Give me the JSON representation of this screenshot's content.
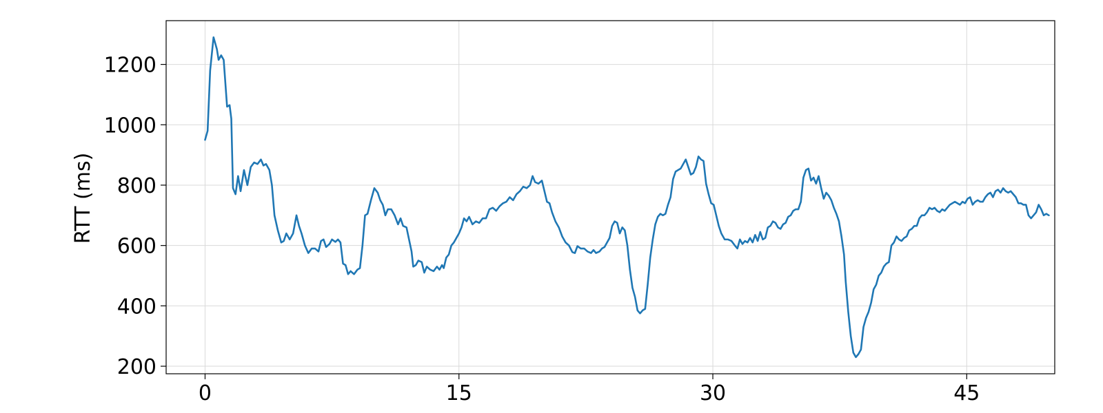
{
  "chart_data": {
    "type": "line",
    "title": "",
    "xlabel": "",
    "ylabel": "RTT (ms)",
    "xlim": [
      -2.3,
      50.2
    ],
    "ylim": [
      175,
      1345
    ],
    "x_ticks": [
      0,
      15,
      30,
      45
    ],
    "y_ticks": [
      200,
      400,
      600,
      800,
      1000,
      1200
    ],
    "grid": true,
    "legend": "none",
    "series": [
      {
        "color": "#1f77b4",
        "points": [
          [
            0,
            950
          ],
          [
            0.15,
            980
          ],
          [
            0.3,
            1180
          ],
          [
            0.5,
            1290
          ],
          [
            0.7,
            1250
          ],
          [
            0.8,
            1215
          ],
          [
            0.95,
            1230
          ],
          [
            1.1,
            1215
          ],
          [
            1.3,
            1060
          ],
          [
            1.45,
            1065
          ],
          [
            1.55,
            1020
          ],
          [
            1.65,
            790
          ],
          [
            1.8,
            770
          ],
          [
            1.95,
            830
          ],
          [
            2.1,
            780
          ],
          [
            2.3,
            850
          ],
          [
            2.5,
            800
          ],
          [
            2.7,
            860
          ],
          [
            2.9,
            875
          ],
          [
            3.1,
            870
          ],
          [
            3.3,
            885
          ],
          [
            3.45,
            865
          ],
          [
            3.6,
            870
          ],
          [
            3.8,
            850
          ],
          [
            3.95,
            800
          ],
          [
            4.1,
            700
          ],
          [
            4.3,
            650
          ],
          [
            4.5,
            610
          ],
          [
            4.65,
            615
          ],
          [
            4.8,
            640
          ],
          [
            5.0,
            620
          ],
          [
            5.2,
            640
          ],
          [
            5.4,
            700
          ],
          [
            5.55,
            665
          ],
          [
            5.7,
            640
          ],
          [
            5.9,
            600
          ],
          [
            6.1,
            575
          ],
          [
            6.3,
            590
          ],
          [
            6.5,
            590
          ],
          [
            6.7,
            580
          ],
          [
            6.85,
            615
          ],
          [
            7.0,
            620
          ],
          [
            7.15,
            595
          ],
          [
            7.35,
            605
          ],
          [
            7.5,
            620
          ],
          [
            7.7,
            612
          ],
          [
            7.85,
            620
          ],
          [
            8.0,
            610
          ],
          [
            8.15,
            540
          ],
          [
            8.3,
            535
          ],
          [
            8.45,
            505
          ],
          [
            8.6,
            515
          ],
          [
            8.8,
            505
          ],
          [
            9.0,
            520
          ],
          [
            9.15,
            525
          ],
          [
            9.3,
            600
          ],
          [
            9.45,
            700
          ],
          [
            9.6,
            705
          ],
          [
            9.8,
            750
          ],
          [
            10.0,
            790
          ],
          [
            10.2,
            775
          ],
          [
            10.35,
            750
          ],
          [
            10.5,
            735
          ],
          [
            10.65,
            700
          ],
          [
            10.8,
            720
          ],
          [
            11.0,
            720
          ],
          [
            11.2,
            700
          ],
          [
            11.4,
            670
          ],
          [
            11.55,
            690
          ],
          [
            11.7,
            665
          ],
          [
            11.9,
            660
          ],
          [
            12.05,
            620
          ],
          [
            12.2,
            580
          ],
          [
            12.3,
            530
          ],
          [
            12.45,
            535
          ],
          [
            12.6,
            550
          ],
          [
            12.8,
            545
          ],
          [
            12.95,
            510
          ],
          [
            13.1,
            530
          ],
          [
            13.3,
            520
          ],
          [
            13.5,
            515
          ],
          [
            13.7,
            530
          ],
          [
            13.85,
            520
          ],
          [
            14.0,
            535
          ],
          [
            14.1,
            525
          ],
          [
            14.25,
            560
          ],
          [
            14.4,
            570
          ],
          [
            14.55,
            600
          ],
          [
            14.7,
            610
          ],
          [
            14.85,
            625
          ],
          [
            15.0,
            640
          ],
          [
            15.15,
            660
          ],
          [
            15.3,
            690
          ],
          [
            15.45,
            680
          ],
          [
            15.6,
            695
          ],
          [
            15.8,
            670
          ],
          [
            16.0,
            680
          ],
          [
            16.2,
            675
          ],
          [
            16.4,
            690
          ],
          [
            16.6,
            690
          ],
          [
            16.8,
            720
          ],
          [
            17.0,
            725
          ],
          [
            17.2,
            715
          ],
          [
            17.4,
            730
          ],
          [
            17.6,
            740
          ],
          [
            17.8,
            745
          ],
          [
            18.0,
            760
          ],
          [
            18.2,
            750
          ],
          [
            18.4,
            770
          ],
          [
            18.6,
            780
          ],
          [
            18.8,
            795
          ],
          [
            19.0,
            790
          ],
          [
            19.2,
            800
          ],
          [
            19.35,
            830
          ],
          [
            19.5,
            810
          ],
          [
            19.7,
            805
          ],
          [
            19.9,
            815
          ],
          [
            20.05,
            780
          ],
          [
            20.2,
            745
          ],
          [
            20.35,
            740
          ],
          [
            20.5,
            710
          ],
          [
            20.7,
            680
          ],
          [
            20.9,
            660
          ],
          [
            21.1,
            630
          ],
          [
            21.3,
            610
          ],
          [
            21.5,
            600
          ],
          [
            21.7,
            578
          ],
          [
            21.85,
            575
          ],
          [
            22.0,
            598
          ],
          [
            22.2,
            590
          ],
          [
            22.4,
            590
          ],
          [
            22.6,
            580
          ],
          [
            22.8,
            575
          ],
          [
            22.95,
            585
          ],
          [
            23.1,
            575
          ],
          [
            23.3,
            580
          ],
          [
            23.45,
            590
          ],
          [
            23.6,
            595
          ],
          [
            23.75,
            610
          ],
          [
            23.9,
            625
          ],
          [
            24.05,
            665
          ],
          [
            24.2,
            680
          ],
          [
            24.35,
            675
          ],
          [
            24.5,
            640
          ],
          [
            24.65,
            660
          ],
          [
            24.8,
            650
          ],
          [
            24.95,
            600
          ],
          [
            25.1,
            520
          ],
          [
            25.25,
            460
          ],
          [
            25.4,
            430
          ],
          [
            25.55,
            385
          ],
          [
            25.7,
            375
          ],
          [
            25.85,
            385
          ],
          [
            26.0,
            390
          ],
          [
            26.15,
            470
          ],
          [
            26.3,
            560
          ],
          [
            26.45,
            620
          ],
          [
            26.6,
            670
          ],
          [
            26.75,
            695
          ],
          [
            26.9,
            705
          ],
          [
            27.05,
            700
          ],
          [
            27.2,
            705
          ],
          [
            27.35,
            735
          ],
          [
            27.5,
            760
          ],
          [
            27.65,
            820
          ],
          [
            27.8,
            845
          ],
          [
            27.95,
            850
          ],
          [
            28.1,
            855
          ],
          [
            28.25,
            870
          ],
          [
            28.4,
            885
          ],
          [
            28.55,
            860
          ],
          [
            28.7,
            835
          ],
          [
            28.85,
            840
          ],
          [
            29.0,
            860
          ],
          [
            29.15,
            895
          ],
          [
            29.3,
            885
          ],
          [
            29.45,
            880
          ],
          [
            29.6,
            805
          ],
          [
            29.75,
            770
          ],
          [
            29.9,
            740
          ],
          [
            30.05,
            735
          ],
          [
            30.2,
            700
          ],
          [
            30.35,
            665
          ],
          [
            30.5,
            640
          ],
          [
            30.7,
            620
          ],
          [
            30.9,
            620
          ],
          [
            31.1,
            615
          ],
          [
            31.3,
            600
          ],
          [
            31.45,
            590
          ],
          [
            31.6,
            620
          ],
          [
            31.75,
            605
          ],
          [
            31.9,
            615
          ],
          [
            32.05,
            610
          ],
          [
            32.2,
            625
          ],
          [
            32.35,
            610
          ],
          [
            32.5,
            635
          ],
          [
            32.65,
            615
          ],
          [
            32.8,
            645
          ],
          [
            32.95,
            620
          ],
          [
            33.1,
            625
          ],
          [
            33.25,
            660
          ],
          [
            33.4,
            665
          ],
          [
            33.55,
            680
          ],
          [
            33.7,
            675
          ],
          [
            33.85,
            660
          ],
          [
            34.0,
            655
          ],
          [
            34.15,
            670
          ],
          [
            34.3,
            675
          ],
          [
            34.45,
            695
          ],
          [
            34.6,
            700
          ],
          [
            34.75,
            715
          ],
          [
            34.9,
            720
          ],
          [
            35.05,
            720
          ],
          [
            35.2,
            745
          ],
          [
            35.35,
            825
          ],
          [
            35.5,
            850
          ],
          [
            35.65,
            855
          ],
          [
            35.8,
            815
          ],
          [
            35.95,
            825
          ],
          [
            36.1,
            805
          ],
          [
            36.25,
            830
          ],
          [
            36.4,
            790
          ],
          [
            36.55,
            755
          ],
          [
            36.7,
            775
          ],
          [
            36.85,
            765
          ],
          [
            37.0,
            750
          ],
          [
            37.15,
            725
          ],
          [
            37.3,
            705
          ],
          [
            37.45,
            680
          ],
          [
            37.6,
            630
          ],
          [
            37.75,
            570
          ],
          [
            37.85,
            480
          ],
          [
            38.0,
            380
          ],
          [
            38.15,
            300
          ],
          [
            38.3,
            245
          ],
          [
            38.45,
            230
          ],
          [
            38.6,
            240
          ],
          [
            38.75,
            255
          ],
          [
            38.9,
            330
          ],
          [
            39.05,
            360
          ],
          [
            39.2,
            380
          ],
          [
            39.35,
            410
          ],
          [
            39.5,
            455
          ],
          [
            39.65,
            470
          ],
          [
            39.8,
            500
          ],
          [
            39.95,
            510
          ],
          [
            40.1,
            530
          ],
          [
            40.25,
            540
          ],
          [
            40.4,
            545
          ],
          [
            40.55,
            600
          ],
          [
            40.7,
            610
          ],
          [
            40.85,
            630
          ],
          [
            41.0,
            620
          ],
          [
            41.15,
            615
          ],
          [
            41.3,
            625
          ],
          [
            41.45,
            630
          ],
          [
            41.6,
            650
          ],
          [
            41.75,
            655
          ],
          [
            41.9,
            665
          ],
          [
            42.05,
            665
          ],
          [
            42.2,
            690
          ],
          [
            42.35,
            700
          ],
          [
            42.5,
            700
          ],
          [
            42.65,
            710
          ],
          [
            42.8,
            725
          ],
          [
            42.95,
            720
          ],
          [
            43.1,
            725
          ],
          [
            43.25,
            715
          ],
          [
            43.4,
            710
          ],
          [
            43.55,
            720
          ],
          [
            43.7,
            715
          ],
          [
            43.85,
            725
          ],
          [
            44.0,
            735
          ],
          [
            44.15,
            740
          ],
          [
            44.3,
            745
          ],
          [
            44.45,
            740
          ],
          [
            44.6,
            735
          ],
          [
            44.75,
            745
          ],
          [
            44.9,
            740
          ],
          [
            45.05,
            755
          ],
          [
            45.2,
            760
          ],
          [
            45.35,
            735
          ],
          [
            45.5,
            745
          ],
          [
            45.65,
            750
          ],
          [
            45.8,
            745
          ],
          [
            45.95,
            745
          ],
          [
            46.1,
            760
          ],
          [
            46.25,
            770
          ],
          [
            46.4,
            775
          ],
          [
            46.55,
            760
          ],
          [
            46.7,
            780
          ],
          [
            46.85,
            785
          ],
          [
            47.0,
            775
          ],
          [
            47.15,
            790
          ],
          [
            47.3,
            780
          ],
          [
            47.45,
            775
          ],
          [
            47.6,
            780
          ],
          [
            47.75,
            770
          ],
          [
            47.9,
            760
          ],
          [
            48.05,
            740
          ],
          [
            48.2,
            740
          ],
          [
            48.35,
            735
          ],
          [
            48.5,
            735
          ],
          [
            48.65,
            700
          ],
          [
            48.8,
            690
          ],
          [
            48.95,
            700
          ],
          [
            49.1,
            710
          ],
          [
            49.25,
            735
          ],
          [
            49.4,
            720
          ],
          [
            49.55,
            700
          ],
          [
            49.7,
            705
          ],
          [
            49.85,
            700
          ]
        ]
      }
    ]
  }
}
